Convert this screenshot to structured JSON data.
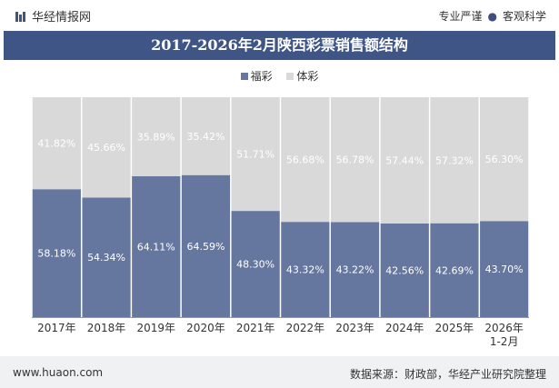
{
  "header": {
    "brand": "华经情报网",
    "tags": [
      "专业严谨",
      "客观科学"
    ]
  },
  "chart_data": {
    "type": "bar",
    "stacked": true,
    "title": "2017-2026年2月陕西彩票销售额结构",
    "categories": [
      "2017年",
      "2018年",
      "2019年",
      "2020年",
      "2021年",
      "2022年",
      "2023年",
      "2024年",
      "2025年",
      "2026年\n1-2月"
    ],
    "series": [
      {
        "name": "福彩",
        "color": "#66779f",
        "values": [
          58.18,
          54.34,
          64.11,
          64.59,
          48.3,
          43.32,
          43.22,
          42.56,
          42.69,
          43.7
        ],
        "labels": [
          "58.18%",
          "54.34%",
          "64.11%",
          "64.59%",
          "48.30%",
          "43.32%",
          "43.22%",
          "42.56%",
          "42.69%",
          "43.70%"
        ]
      },
      {
        "name": "体彩",
        "color": "#d9d9d9",
        "values": [
          41.82,
          45.66,
          35.89,
          35.42,
          51.71,
          56.68,
          56.78,
          57.44,
          57.32,
          56.3
        ],
        "labels": [
          "41.82%",
          "45.66%",
          "35.89%",
          "35.42%",
          "51.71%",
          "56.68%",
          "56.78%",
          "57.44%",
          "57.32%",
          "56.30%"
        ]
      }
    ],
    "ylim": [
      0,
      100
    ],
    "grid": false,
    "legend": "top-center"
  },
  "footer": {
    "website": "www.huaon.com",
    "source": "数据来源：财政部，华经产业研究院整理"
  }
}
